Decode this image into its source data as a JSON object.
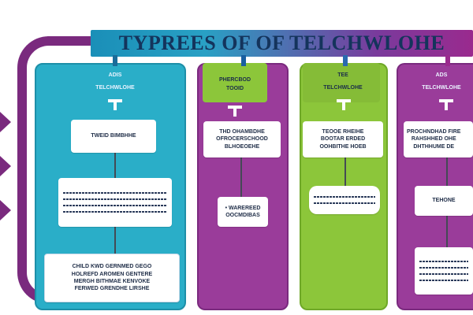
{
  "diagram": {
    "title": "TYPREES OF OF TELCHWLOHE",
    "colors": {
      "frame": "#7a2a7e",
      "teal": "#2aaec8",
      "purple": "#9a3c9a",
      "green": "#8cc63a",
      "title_gradient_start": "#1a8fb8",
      "title_gradient_end": "#9a2a8e",
      "text_dark": "#14345c"
    },
    "columns": [
      {
        "color": "teal",
        "heading_top": "ADIS",
        "heading": "TELCHWLOHE",
        "icon": "t-icon",
        "boxes": [
          {
            "kind": "text",
            "text": "TWEID BIMBHHE"
          },
          {
            "kind": "lines"
          },
          {
            "kind": "text",
            "text": "CHILD KWD GERNMED GEGO\nHOLREFD AROMEN GENTERE\nMERGH BITHMAE KENVOKE\nFERWED GRENDHE LIRSHE"
          }
        ]
      },
      {
        "color": "purple",
        "heading_top": "",
        "heading": "PHERCBOD\nTOOID",
        "icon": "t-icon",
        "boxes": [
          {
            "kind": "text",
            "text": "THD OHAMBDHE\nOFROCERSCHOOD\nBLHOEOEHE"
          },
          {
            "kind": "text",
            "text": "• WAREREED\nOOCMDIBAS"
          }
        ]
      },
      {
        "color": "green",
        "heading_top": "TEE",
        "heading": "TELCHWLOHE",
        "icon": "t-icon",
        "boxes": [
          {
            "kind": "text",
            "text": "TEOOE RHEIHE\nBOOTAR ERDED\nOOHBITHE HOEB"
          },
          {
            "kind": "lines"
          }
        ]
      },
      {
        "color": "purple",
        "heading_top": "ADS",
        "heading": "TELCHWLOHE",
        "icon": "t-icon",
        "boxes": [
          {
            "kind": "text",
            "text": "PROCHNDHAD FIRE\nRAHSHHED OHE\nDHTHHUME DE"
          },
          {
            "kind": "text",
            "text": "TEHONE"
          },
          {
            "kind": "lines"
          }
        ]
      }
    ]
  }
}
